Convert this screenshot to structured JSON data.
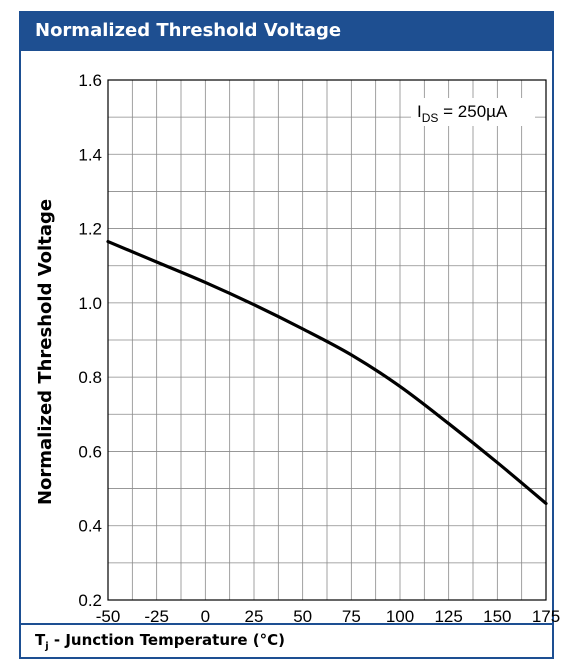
{
  "header": {
    "title": "Normalized Threshold Voltage"
  },
  "footer": {
    "xlabel_main": "T",
    "xlabel_sub": "j",
    "xlabel_rest": " - Junction Temperature (°C)"
  },
  "chart_data": {
    "type": "line",
    "title": "Normalized Threshold Voltage",
    "ylabel": "Normalized Threshold Voltage",
    "xlabel": "Tj - Junction Temperature (°C)",
    "xlim": [
      -50,
      175
    ],
    "ylim": [
      0.2,
      1.6
    ],
    "x_ticks": [
      -50,
      -25,
      0,
      25,
      50,
      75,
      100,
      125,
      150,
      175
    ],
    "y_ticks": [
      0.2,
      0.4,
      0.6,
      0.8,
      1.0,
      1.2,
      1.4,
      1.6
    ],
    "x_tick_labels": [
      "-50",
      "-25",
      "0",
      "25",
      "50",
      "75",
      "100",
      "125",
      "150",
      "175"
    ],
    "y_tick_labels": [
      "0.2",
      "0.4",
      "0.6",
      "0.8",
      "1.0",
      "1.2",
      "1.4",
      "1.6"
    ],
    "grid": true,
    "annotation": {
      "main": "I",
      "sub": "DS",
      "rest": " = 250µA"
    },
    "series": [
      {
        "color": "#000000",
        "points": [
          [
            -50,
            1.165
          ],
          [
            -25,
            1.11
          ],
          [
            0,
            1.055
          ],
          [
            25,
            0.995
          ],
          [
            50,
            0.93
          ],
          [
            75,
            0.86
          ],
          [
            100,
            0.775
          ],
          [
            125,
            0.675
          ],
          [
            150,
            0.57
          ],
          [
            175,
            0.46
          ]
        ]
      }
    ]
  }
}
